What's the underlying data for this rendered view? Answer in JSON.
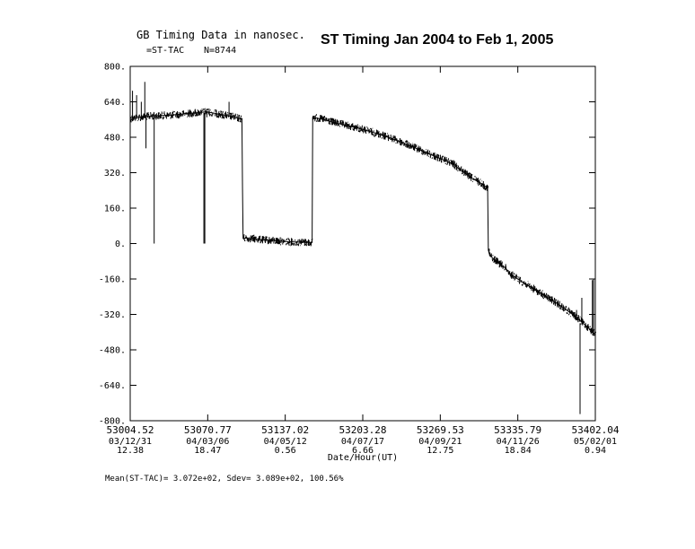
{
  "header": {
    "left_title": "GB Timing Data in nanosec.",
    "series_label": "=ST-TAC",
    "count_label": "N=8744",
    "main_title": "ST Timing Jan 2004 to Feb 1, 2005"
  },
  "footer": {
    "stats": "Mean(ST-TAC)=    3.072e+02, Sdev=    3.089e+02,  100.56%"
  },
  "chart_data": {
    "type": "line",
    "title": "ST Timing Jan 2004 to Feb 1, 2005",
    "xlabel": "Date/Hour(UT)",
    "ylabel": "",
    "xlim": [
      53004.52,
      53402.04
    ],
    "ylim": [
      -800,
      800
    ],
    "grid": false,
    "yticks": [
      "800.",
      "640.",
      "480.",
      "320.",
      "160.",
      "0.",
      "-160.",
      "-320.",
      "-480.",
      "-640.",
      "-800."
    ],
    "xticks": [
      {
        "mjd": "53004.52",
        "date": "03/12/31",
        "hour": "12.38"
      },
      {
        "mjd": "53070.77",
        "date": "04/03/06",
        "hour": "18.47"
      },
      {
        "mjd": "53137.02",
        "date": "04/05/12",
        "hour": "0.56"
      },
      {
        "mjd": "53203.28",
        "date": "04/07/17",
        "hour": "6.66"
      },
      {
        "mjd": "53269.53",
        "date": "04/09/21",
        "hour": "12.75"
      },
      {
        "mjd": "53335.79",
        "date": "04/11/26",
        "hour": "18.84"
      },
      {
        "mjd": "53402.04",
        "date": "05/02/01",
        "hour": "0.94"
      }
    ],
    "series": [
      {
        "name": "ST-TAC",
        "x": [
          53004.5,
          53020,
          53040,
          53060,
          53070,
          53080,
          53090,
          53100,
          53100.5,
          53101,
          53110,
          53120,
          53130,
          53140,
          53155,
          53160,
          53160.5,
          53170,
          53180,
          53200,
          53220,
          53240,
          53260,
          53280,
          53290,
          53295,
          53300,
          53305,
          53310,
          53310.6,
          53312,
          53320,
          53325,
          53330,
          53340,
          53360,
          53375,
          53385,
          53395,
          53402
        ],
        "y": [
          565,
          575,
          580,
          590,
          595,
          585,
          575,
          562,
          250,
          25,
          22,
          15,
          12,
          8,
          5,
          5,
          570,
          560,
          545,
          520,
          490,
          450,
          405,
          360,
          320,
          300,
          285,
          270,
          250,
          -30,
          -55,
          -90,
          -110,
          -140,
          -175,
          -240,
          -290,
          -330,
          -375,
          -410
        ]
      }
    ],
    "spikes": [
      {
        "x": 53006.5,
        "y0": 565,
        "y1": 690
      },
      {
        "x": 53017,
        "y0": 575,
        "y1": 730
      },
      {
        "x": 53010,
        "y0": 575,
        "y1": 670
      },
      {
        "x": 53014,
        "y0": 575,
        "y1": 640
      },
      {
        "x": 53018,
        "y0": 575,
        "y1": 430
      },
      {
        "x": 53025,
        "y0": 575,
        "y1": 0
      },
      {
        "x": 53067.5,
        "y0": 590,
        "y1": 0
      },
      {
        "x": 53068.3,
        "y0": 590,
        "y1": 0
      },
      {
        "x": 53070,
        "y0": 595,
        "y1": 570
      },
      {
        "x": 53089,
        "y0": 575,
        "y1": 640
      },
      {
        "x": 53386,
        "y0": -345,
        "y1": -300
      },
      {
        "x": 53389,
        "y0": -360,
        "y1": -770
      },
      {
        "x": 53390.5,
        "y0": -365,
        "y1": -245
      },
      {
        "x": 53399.5,
        "y0": -400,
        "y1": -165
      },
      {
        "x": 53400.5,
        "y0": -405,
        "y1": -160
      }
    ]
  }
}
